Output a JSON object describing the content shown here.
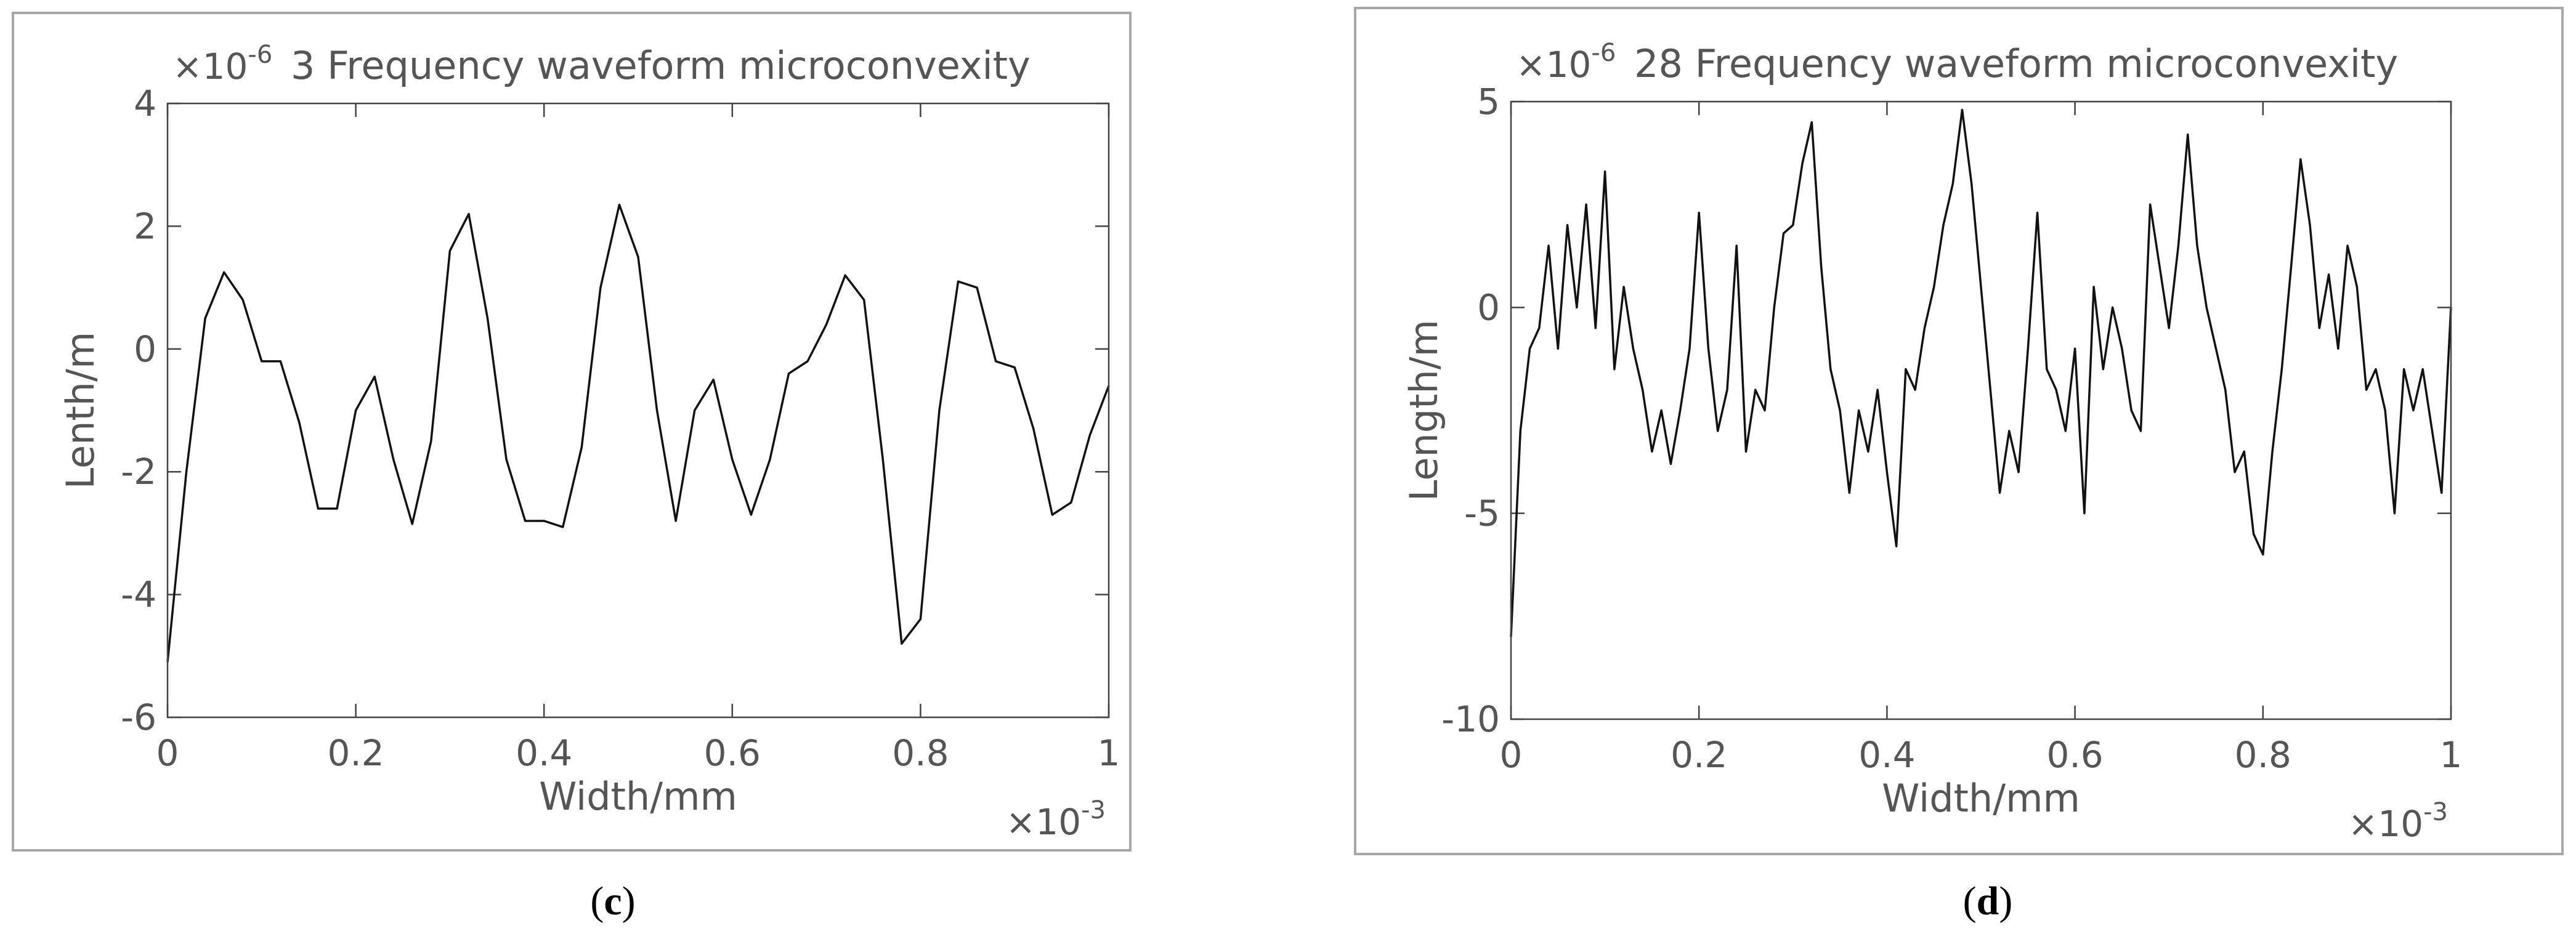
{
  "chart_data": [
    {
      "type": "line",
      "title": "3 Frequency waveform microconvexity",
      "x_label": "Width/mm",
      "y_label": "Lenth/m",
      "x_multiplier": {
        "base": "×10",
        "exponent": "-3"
      },
      "y_multiplier": {
        "base": "×10",
        "exponent": "-6"
      },
      "caption": {
        "open": "(",
        "letter": "c",
        "close": ")"
      },
      "xlim": [
        0,
        1
      ],
      "xticks": [
        0,
        0.2,
        0.4,
        0.6,
        0.8,
        1
      ],
      "ylim": [
        -6,
        4
      ],
      "yticks": [
        -6,
        -4,
        -2,
        0,
        2,
        4
      ],
      "x": [
        0,
        0.02,
        0.04,
        0.06,
        0.08,
        0.1,
        0.12,
        0.14,
        0.16,
        0.18,
        0.2,
        0.22,
        0.24,
        0.26,
        0.28,
        0.3,
        0.32,
        0.34,
        0.36,
        0.38,
        0.4,
        0.42,
        0.44,
        0.46,
        0.48,
        0.5,
        0.52,
        0.54,
        0.56,
        0.58,
        0.6,
        0.62,
        0.64,
        0.66,
        0.68,
        0.7,
        0.72,
        0.74,
        0.76,
        0.78,
        0.8,
        0.82,
        0.84,
        0.86,
        0.88,
        0.9,
        0.92,
        0.94,
        0.96,
        0.98,
        1
      ],
      "series": [
        {
          "color": "#111111",
          "values": [
            -5.1,
            -2.0,
            0.5,
            1.25,
            0.8,
            -0.2,
            -0.2,
            -1.2,
            -2.6,
            -2.6,
            -1.0,
            -0.45,
            -1.8,
            -2.85,
            -1.5,
            1.6,
            2.2,
            0.5,
            -1.8,
            -2.8,
            -2.8,
            -2.9,
            -1.6,
            1.0,
            2.35,
            1.5,
            -1.0,
            -2.8,
            -1.0,
            -0.5,
            -1.8,
            -2.7,
            -1.8,
            -0.4,
            -0.2,
            0.4,
            1.2,
            0.8,
            -1.8,
            -4.8,
            -4.4,
            -1.0,
            1.1,
            1.0,
            -0.2,
            -0.3,
            -1.3,
            -2.7,
            -2.5,
            -1.4,
            -0.6
          ]
        }
      ]
    },
    {
      "type": "line",
      "title": "28 Frequency waveform microconvexity",
      "x_label": "Width/mm",
      "y_label": "Length/m",
      "x_multiplier": {
        "base": "×10",
        "exponent": "-3"
      },
      "y_multiplier": {
        "base": "×10",
        "exponent": "-6"
      },
      "caption": {
        "open": "(",
        "letter": "d",
        "close": ")"
      },
      "xlim": [
        0,
        1
      ],
      "xticks": [
        0,
        0.2,
        0.4,
        0.6,
        0.8,
        1
      ],
      "ylim": [
        -10,
        5
      ],
      "yticks": [
        -10,
        -5,
        0,
        5
      ],
      "x": [
        0,
        0.01,
        0.02,
        0.03,
        0.04,
        0.05,
        0.06,
        0.07,
        0.08,
        0.09,
        0.1,
        0.11,
        0.12,
        0.13,
        0.14,
        0.15,
        0.16,
        0.17,
        0.18,
        0.19,
        0.2,
        0.21,
        0.22,
        0.23,
        0.24,
        0.25,
        0.26,
        0.27,
        0.28,
        0.29,
        0.3,
        0.31,
        0.32,
        0.33,
        0.34,
        0.35,
        0.36,
        0.37,
        0.38,
        0.39,
        0.4,
        0.41,
        0.42,
        0.43,
        0.44,
        0.45,
        0.46,
        0.47,
        0.48,
        0.49,
        0.5,
        0.51,
        0.52,
        0.53,
        0.54,
        0.55,
        0.56,
        0.57,
        0.58,
        0.59,
        0.6,
        0.61,
        0.62,
        0.63,
        0.64,
        0.65,
        0.66,
        0.67,
        0.68,
        0.69,
        0.7,
        0.71,
        0.72,
        0.73,
        0.74,
        0.75,
        0.76,
        0.77,
        0.78,
        0.79,
        0.8,
        0.81,
        0.82,
        0.83,
        0.84,
        0.85,
        0.86,
        0.87,
        0.88,
        0.89,
        0.9,
        0.91,
        0.92,
        0.93,
        0.94,
        0.95,
        0.96,
        0.97,
        0.98,
        0.99,
        1
      ],
      "series": [
        {
          "color": "#111111",
          "values": [
            -8,
            -3,
            -1,
            -0.5,
            1.5,
            -1,
            2,
            0,
            2.5,
            -0.5,
            3.3,
            -1.5,
            0.5,
            -1,
            -2,
            -3.5,
            -2.5,
            -3.8,
            -2.5,
            -1,
            2.3,
            -1,
            -3,
            -2,
            1.5,
            -3.5,
            -2,
            -2.5,
            0,
            1.8,
            2,
            3.5,
            4.5,
            1,
            -1.5,
            -2.5,
            -4.5,
            -2.5,
            -3.5,
            -2,
            -4,
            -5.8,
            -1.5,
            -2,
            -0.5,
            0.5,
            2,
            3,
            4.8,
            3,
            0.5,
            -2,
            -4.5,
            -3,
            -4,
            -1,
            2.3,
            -1.5,
            -2,
            -3,
            -1,
            -5,
            0.5,
            -1.5,
            0,
            -1,
            -2.5,
            -3,
            2.5,
            1,
            -0.5,
            1.5,
            4.2,
            1.5,
            0,
            -1,
            -2,
            -4,
            -3.5,
            -5.5,
            -6,
            -3.5,
            -1.5,
            1,
            3.6,
            2,
            -0.5,
            0.8,
            -1,
            1.5,
            0.5,
            -2,
            -1.5,
            -2.5,
            -5,
            -1.5,
            -2.5,
            -1.5,
            -3,
            -4.5,
            0
          ]
        }
      ]
    }
  ]
}
